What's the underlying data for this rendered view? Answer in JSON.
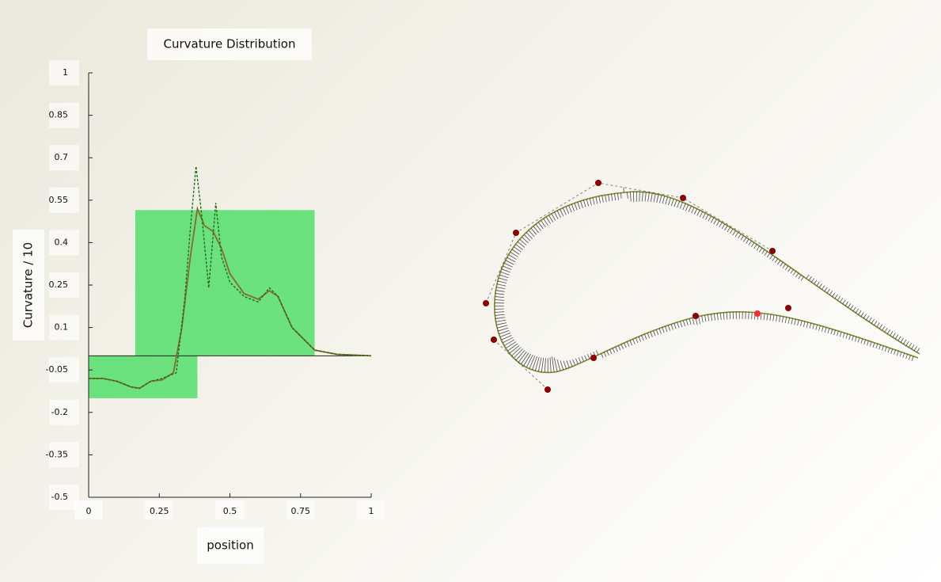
{
  "chart_data": {
    "type": "line",
    "title": "Curvature Distribution",
    "x_label": "position",
    "y_label": "Curvature / 10",
    "xlim": [
      0,
      1
    ],
    "ylim": [
      -0.5,
      1
    ],
    "xticks": [
      0,
      0.25,
      0.5,
      0.75,
      1
    ],
    "yticks": [
      -0.5,
      -0.35,
      -0.2,
      -0.05,
      0.1,
      0.25,
      0.4,
      0.55,
      0.7,
      0.85,
      1
    ],
    "bands": [
      {
        "x": [
          0,
          0.385
        ],
        "value": -0.15,
        "color": "#3ddc5a"
      },
      {
        "x": [
          0.165,
          0.8
        ],
        "value": 0.515,
        "color": "#3ddc5a"
      }
    ],
    "series": [
      {
        "color": "#8a6a2a",
        "dash": false,
        "x": [
          0,
          0.05,
          0.1,
          0.15,
          0.18,
          0.22,
          0.26,
          0.3,
          0.33,
          0.36,
          0.385,
          0.41,
          0.44,
          0.47,
          0.5,
          0.55,
          0.6,
          0.64,
          0.67,
          0.72,
          0.8,
          0.88,
          1
        ],
        "values": [
          -0.08,
          -0.08,
          -0.09,
          -0.11,
          -0.115,
          -0.09,
          -0.085,
          -0.06,
          0.1,
          0.35,
          0.52,
          0.46,
          0.44,
          0.38,
          0.29,
          0.22,
          0.2,
          0.23,
          0.21,
          0.1,
          0.02,
          0.005,
          0
        ]
      },
      {
        "color": "#1e6b1e",
        "dash": true,
        "x": [
          0,
          0.05,
          0.1,
          0.15,
          0.18,
          0.22,
          0.26,
          0.31,
          0.34,
          0.36,
          0.38,
          0.4,
          0.425,
          0.45,
          0.47,
          0.5,
          0.55,
          0.6,
          0.64,
          0.67,
          0.72,
          0.8,
          0.88,
          1
        ],
        "values": [
          -0.08,
          -0.08,
          -0.09,
          -0.11,
          -0.115,
          -0.09,
          -0.08,
          -0.06,
          0.2,
          0.45,
          0.67,
          0.5,
          0.24,
          0.54,
          0.35,
          0.26,
          0.21,
          0.19,
          0.24,
          0.21,
          0.1,
          0.02,
          0.005,
          0
        ]
      }
    ]
  }
}
